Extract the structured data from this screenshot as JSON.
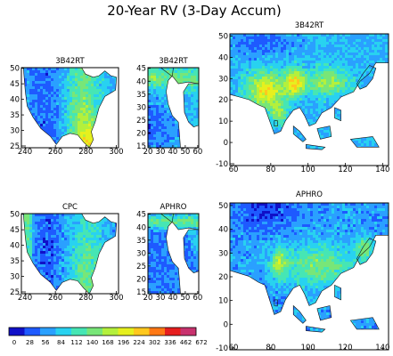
{
  "figure": {
    "title": "20-Year RV (3-Day Accum)"
  },
  "colors": {
    "ocean": "#ffffff",
    "frame": "#000000",
    "coast": "#111111"
  },
  "panels": [
    {
      "id": "na-3b42rt",
      "title": "3B42RT",
      "region": "North America",
      "xticks": [
        "240",
        "260",
        "280",
        "300"
      ],
      "yticks": [
        "25",
        "30",
        "35",
        "40",
        "45",
        "50"
      ],
      "palette_scheme": "na_sat"
    },
    {
      "id": "af-3b42rt",
      "title": "3B42RT",
      "region": "Middle East / North Africa",
      "xticks": [
        "20",
        "30",
        "40",
        "50",
        "60"
      ],
      "yticks": [
        "15",
        "20",
        "25",
        "30",
        "35",
        "40",
        "45"
      ],
      "palette_scheme": "me_sat"
    },
    {
      "id": "as-3b42rt",
      "title": "3B42RT",
      "region": "Asia",
      "xticks": [
        "60",
        "80",
        "100",
        "120",
        "140"
      ],
      "yticks": [
        "-10",
        "0",
        "10",
        "20",
        "30",
        "40",
        "50"
      ],
      "palette_scheme": "asia_sat"
    },
    {
      "id": "na-cpc",
      "title": "CPC",
      "region": "North America",
      "xticks": [
        "240",
        "260",
        "280",
        "300"
      ],
      "yticks": [
        "25",
        "30",
        "35",
        "40",
        "45",
        "50"
      ],
      "palette_scheme": "na_gauge"
    },
    {
      "id": "af-aphro",
      "title": "APHRO",
      "region": "Middle East / North Africa",
      "xticks": [
        "20",
        "30",
        "40",
        "50",
        "60"
      ],
      "yticks": [
        "15",
        "20",
        "25",
        "30",
        "35",
        "40",
        "45"
      ],
      "palette_scheme": "me_gauge"
    },
    {
      "id": "as-aphro",
      "title": "APHRO",
      "region": "Asia",
      "xticks": [
        "60",
        "80",
        "100",
        "120",
        "140"
      ],
      "yticks": [
        "-10",
        "0",
        "10",
        "20",
        "30",
        "40",
        "50"
      ],
      "palette_scheme": "asia_gauge"
    }
  ],
  "colorbar": {
    "levels": [
      "0",
      "28",
      "56",
      "84",
      "112",
      "140",
      "168",
      "196",
      "224",
      "302",
      "336",
      "462",
      "672"
    ],
    "colors": [
      "#1010c8",
      "#1e5aff",
      "#2aa0ff",
      "#28d2f0",
      "#46e6b4",
      "#78e678",
      "#b4f03c",
      "#e6f01e",
      "#ffc81e",
      "#ff7814",
      "#e61e1e",
      "#c8326e"
    ]
  }
}
